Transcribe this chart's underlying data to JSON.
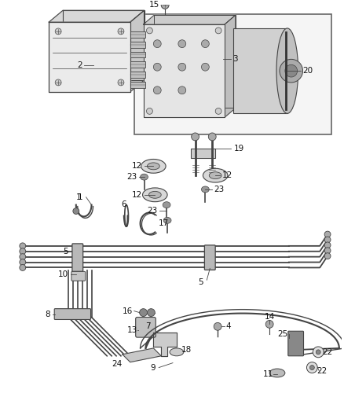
{
  "bg_color": "#ffffff",
  "lc": "#444444",
  "lw_main": 1.4,
  "figsize": [
    4.38,
    5.33
  ],
  "dpi": 100
}
